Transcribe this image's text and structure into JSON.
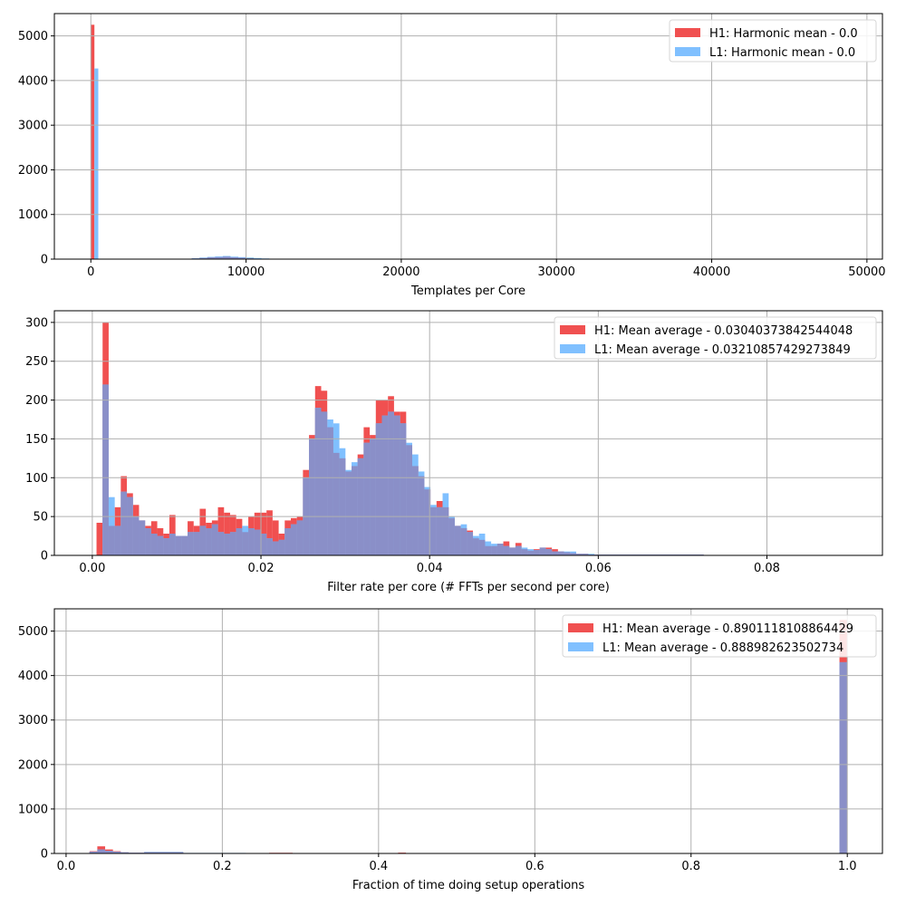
{
  "colors": {
    "h1": "#f05050",
    "l1": "#80c0ff",
    "overlap": "#8a8fc8",
    "grid": "#b0b0b0"
  },
  "chart_data": [
    {
      "type": "bar",
      "xlabel": "Templates per Core",
      "ylabel": "",
      "xlim": [
        -2350,
        51000
      ],
      "ylim": [
        0,
        5500
      ],
      "xticks": [
        0,
        10000,
        20000,
        30000,
        40000,
        50000
      ],
      "yticks": [
        0,
        1000,
        2000,
        3000,
        4000,
        5000
      ],
      "grid": true,
      "legend_position": "top-right",
      "series": [
        {
          "name": "H1: Harmonic mean  - 0.0",
          "bins": [
            {
              "x0": 0,
              "x1": 230,
              "y": 5250
            },
            {
              "x0": 5600,
              "x1": 6000,
              "y": 3
            },
            {
              "x0": 6000,
              "x1": 6500,
              "y": 8
            },
            {
              "x0": 6500,
              "x1": 7000,
              "y": 15
            },
            {
              "x0": 7000,
              "x1": 7500,
              "y": 25
            },
            {
              "x0": 7500,
              "x1": 8000,
              "y": 40
            },
            {
              "x0": 8000,
              "x1": 8500,
              "y": 45
            },
            {
              "x0": 8500,
              "x1": 9000,
              "y": 55
            },
            {
              "x0": 9000,
              "x1": 9500,
              "y": 40
            },
            {
              "x0": 9500,
              "x1": 10000,
              "y": 30
            },
            {
              "x0": 10000,
              "x1": 10500,
              "y": 20
            },
            {
              "x0": 10500,
              "x1": 11000,
              "y": 10
            },
            {
              "x0": 11000,
              "x1": 11500,
              "y": 5
            }
          ]
        },
        {
          "name": "L1: Harmonic mean  - 0.0",
          "bins": [
            {
              "x0": 230,
              "x1": 480,
              "y": 4270
            },
            {
              "x0": 6000,
              "x1": 6500,
              "y": 10
            },
            {
              "x0": 6500,
              "x1": 7000,
              "y": 20
            },
            {
              "x0": 7000,
              "x1": 7500,
              "y": 35
            },
            {
              "x0": 7500,
              "x1": 8000,
              "y": 50
            },
            {
              "x0": 8000,
              "x1": 8500,
              "y": 60
            },
            {
              "x0": 8500,
              "x1": 9000,
              "y": 70
            },
            {
              "x0": 9000,
              "x1": 9500,
              "y": 55
            },
            {
              "x0": 9500,
              "x1": 10000,
              "y": 45
            },
            {
              "x0": 10000,
              "x1": 10500,
              "y": 35
            },
            {
              "x0": 10500,
              "x1": 11000,
              "y": 25
            },
            {
              "x0": 11000,
              "x1": 11500,
              "y": 15
            },
            {
              "x0": 11500,
              "x1": 12100,
              "y": 10
            }
          ]
        }
      ]
    },
    {
      "type": "bar",
      "xlabel": "Filter rate per core (# FFTs per second per core)",
      "ylabel": "",
      "xlim": [
        -0.0045,
        0.0937
      ],
      "ylim": [
        0,
        315
      ],
      "xticks": [
        0.0,
        0.02,
        0.04,
        0.06,
        0.08
      ],
      "tick_labels_x": [
        "0.00",
        "0.02",
        "0.04",
        "0.06",
        "0.08"
      ],
      "yticks": [
        0,
        50,
        100,
        150,
        200,
        250,
        300
      ],
      "grid": true,
      "legend_position": "top-right",
      "bin_start": 0.0005,
      "bin_width": 0.00072,
      "series": [
        {
          "name": "H1: Mean average - 0.03040373842544048",
          "values": [
            42,
            300,
            38,
            62,
            102,
            80,
            65,
            45,
            38,
            44,
            35,
            28,
            52,
            25,
            25,
            44,
            38,
            60,
            42,
            45,
            62,
            55,
            52,
            47,
            30,
            50,
            55,
            55,
            58,
            45,
            28,
            45,
            48,
            50,
            110,
            155,
            218,
            212,
            165,
            132,
            125,
            108,
            115,
            130,
            165,
            155,
            200,
            200,
            205,
            185,
            185,
            142,
            115,
            102,
            85,
            62,
            70,
            62,
            48,
            38,
            35,
            32,
            22,
            20,
            12,
            12,
            15,
            18,
            10,
            16,
            8,
            6,
            8,
            10,
            10,
            8,
            5,
            4,
            3,
            2,
            2,
            1,
            1,
            1,
            1,
            1,
            1,
            1,
            1,
            1,
            1,
            1,
            1,
            1,
            1,
            1,
            1,
            1,
            1,
            1
          ]
        },
        {
          "name": "L1: Mean average - 0.03210857429273849",
          "values": [
            0,
            220,
            75,
            38,
            82,
            75,
            50,
            45,
            35,
            28,
            25,
            22,
            28,
            25,
            25,
            30,
            30,
            38,
            35,
            40,
            30,
            28,
            30,
            35,
            38,
            35,
            33,
            28,
            22,
            18,
            20,
            35,
            40,
            45,
            100,
            150,
            190,
            185,
            175,
            170,
            138,
            110,
            120,
            125,
            145,
            150,
            170,
            180,
            185,
            180,
            170,
            145,
            130,
            108,
            88,
            65,
            62,
            80,
            50,
            38,
            40,
            30,
            25,
            28,
            18,
            15,
            15,
            12,
            10,
            12,
            10,
            8,
            7,
            10,
            8,
            5,
            5,
            5,
            5,
            2,
            2,
            2,
            1,
            1,
            1,
            1,
            1,
            1,
            1,
            1,
            1,
            1,
            1,
            1,
            1,
            1,
            1,
            1,
            1,
            1
          ]
        }
      ]
    },
    {
      "type": "bar",
      "xlabel": "Fraction of time doing setup operations",
      "ylabel": "",
      "xlim": [
        -0.015,
        1.045
      ],
      "ylim": [
        0,
        5500
      ],
      "xticks": [
        0.0,
        0.2,
        0.4,
        0.6,
        0.8,
        1.0
      ],
      "tick_labels_x": [
        "0.0",
        "0.2",
        "0.4",
        "0.6",
        "0.8",
        "1.0"
      ],
      "yticks": [
        0,
        1000,
        2000,
        3000,
        4000,
        5000
      ],
      "grid": true,
      "legend_position": "top-right",
      "series": [
        {
          "name": "H1: Mean average - 0.8901118108864429",
          "bins": [
            {
              "x0": 0.03,
              "x1": 0.04,
              "y": 50
            },
            {
              "x0": 0.04,
              "x1": 0.05,
              "y": 160
            },
            {
              "x0": 0.05,
              "x1": 0.06,
              "y": 90
            },
            {
              "x0": 0.06,
              "x1": 0.07,
              "y": 50
            },
            {
              "x0": 0.07,
              "x1": 0.08,
              "y": 25
            },
            {
              "x0": 0.08,
              "x1": 0.1,
              "y": 15
            },
            {
              "x0": 0.1,
              "x1": 0.15,
              "y": 30
            },
            {
              "x0": 0.15,
              "x1": 0.23,
              "y": 10
            },
            {
              "x0": 0.24,
              "x1": 0.25,
              "y": 10
            },
            {
              "x0": 0.26,
              "x1": 0.29,
              "y": 15
            },
            {
              "x0": 0.425,
              "x1": 0.435,
              "y": 18
            },
            {
              "x0": 0.99,
              "x1": 1.0,
              "y": 5250
            }
          ]
        },
        {
          "name": "L1: Mean average - 0.888982623502734",
          "bins": [
            {
              "x0": 0.03,
              "x1": 0.04,
              "y": 40
            },
            {
              "x0": 0.04,
              "x1": 0.05,
              "y": 90
            },
            {
              "x0": 0.05,
              "x1": 0.06,
              "y": 60
            },
            {
              "x0": 0.06,
              "x1": 0.07,
              "y": 40
            },
            {
              "x0": 0.07,
              "x1": 0.08,
              "y": 25
            },
            {
              "x0": 0.08,
              "x1": 0.1,
              "y": 15
            },
            {
              "x0": 0.1,
              "x1": 0.15,
              "y": 35
            },
            {
              "x0": 0.15,
              "x1": 0.23,
              "y": 12
            },
            {
              "x0": 0.26,
              "x1": 0.29,
              "y": 10
            },
            {
              "x0": 0.99,
              "x1": 1.0,
              "y": 4300
            }
          ]
        }
      ]
    }
  ]
}
